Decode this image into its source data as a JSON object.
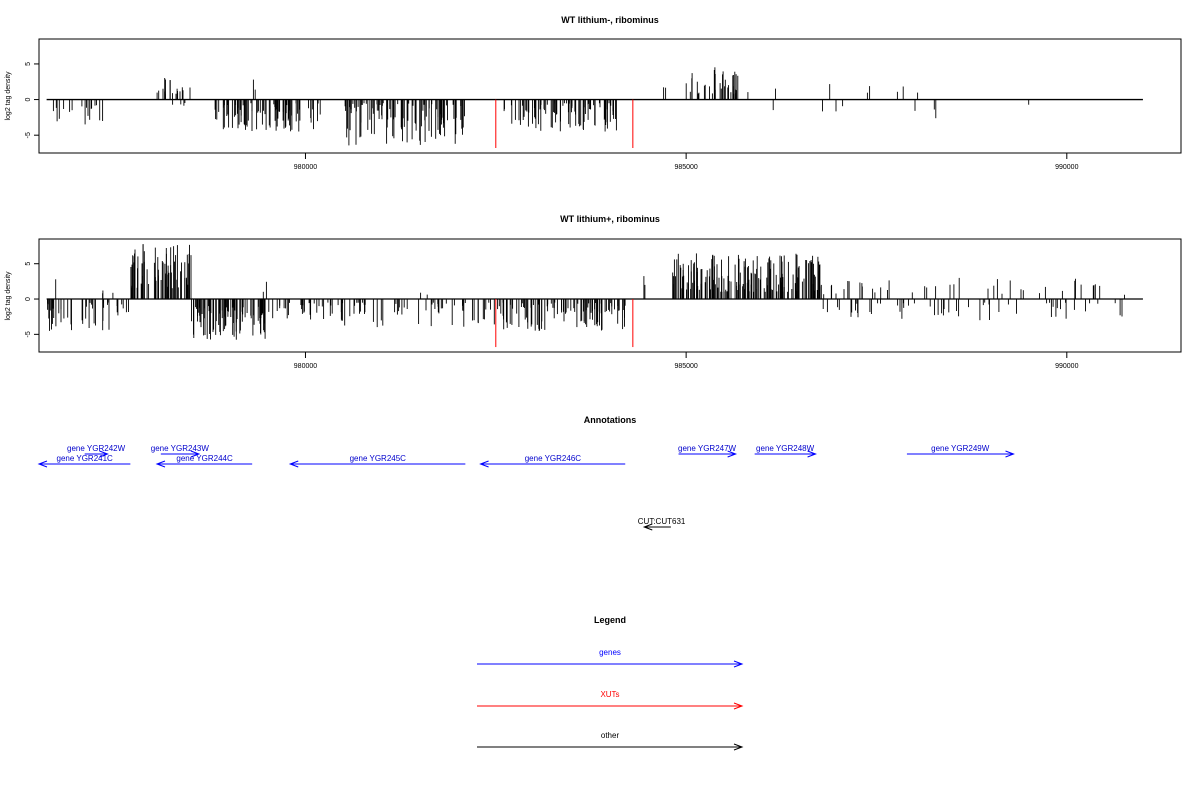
{
  "chart_data": [
    {
      "type": "bar",
      "title": "WT lithium-, ribominus",
      "ylabel": "log2 tag density",
      "xlim": [
        976500,
        991500
      ],
      "ylim": [
        -7.5,
        8.5
      ],
      "xticks": [
        980000,
        985000,
        990000
      ],
      "xtick_labels": [
        "980000",
        "985000",
        "990000"
      ],
      "yticks": [
        -5,
        0,
        5
      ],
      "ytick_labels": [
        "-5",
        "0",
        "5"
      ],
      "baseline": {
        "from": 976600,
        "to": 991000
      },
      "series": [
        {
          "color": "#000000",
          "intervals": [
            {
              "from": 976600,
              "to": 977400,
              "sign": -1,
              "min": 0.5,
              "max": 3.5,
              "count": 18
            },
            {
              "from": 977900,
              "to": 978500,
              "sign": 1,
              "min": 0.8,
              "max": 3.2,
              "count": 18
            },
            {
              "from": 978250,
              "to": 978500,
              "sign": -1,
              "min": 0.3,
              "max": 1.2,
              "count": 4
            },
            {
              "from": 978800,
              "to": 980200,
              "sign": -1,
              "min": 0.5,
              "max": 4.5,
              "count": 85
            },
            {
              "from": 979300,
              "to": 979350,
              "sign": 1,
              "min": 1.0,
              "max": 3.2,
              "count": 2
            },
            {
              "from": 980500,
              "to": 982100,
              "sign": -1,
              "min": 0.5,
              "max": 6.5,
              "count": 100
            },
            {
              "from": 982600,
              "to": 984100,
              "sign": -1,
              "min": 0.5,
              "max": 4.5,
              "count": 90
            },
            {
              "from": 984700,
              "to": 984750,
              "sign": 1,
              "min": 1.5,
              "max": 2.0,
              "count": 2
            },
            {
              "from": 985000,
              "to": 985700,
              "sign": 1,
              "min": 0.8,
              "max": 4.7,
              "count": 35
            },
            {
              "from": 985700,
              "to": 990000,
              "sign": 1,
              "min": 0.8,
              "max": 2.5,
              "count": 8
            },
            {
              "from": 985700,
              "to": 990000,
              "sign": -1,
              "min": 0.5,
              "max": 2.8,
              "count": 8
            }
          ]
        },
        {
          "color": "#ff0000",
          "lines": [
            {
              "x": 982500,
              "y": -6.8
            },
            {
              "x": 984300,
              "y": -6.8
            }
          ]
        }
      ]
    },
    {
      "type": "bar",
      "title": "WT lithium+, ribominus",
      "ylabel": "log2 tag density",
      "xlim": [
        976500,
        991500
      ],
      "ylim": [
        -7.5,
        8.5
      ],
      "xticks": [
        980000,
        985000,
        990000
      ],
      "xtick_labels": [
        "980000",
        "985000",
        "990000"
      ],
      "yticks": [
        -5,
        0,
        5
      ],
      "ytick_labels": [
        "-5",
        "0",
        "5"
      ],
      "baseline": {
        "from": 976600,
        "to": 991000
      },
      "series": [
        {
          "color": "#000000",
          "intervals": [
            {
              "from": 976600,
              "to": 977700,
              "sign": -1,
              "min": 0.5,
              "max": 5.0,
              "count": 45
            },
            {
              "from": 976700,
              "to": 976750,
              "sign": 1,
              "min": 2.5,
              "max": 3.0,
              "count": 1
            },
            {
              "from": 977300,
              "to": 977500,
              "sign": 1,
              "min": 0.8,
              "max": 1.5,
              "count": 3
            },
            {
              "from": 977700,
              "to": 978500,
              "sign": 1,
              "min": 1.5,
              "max": 8.0,
              "count": 70
            },
            {
              "from": 978500,
              "to": 979500,
              "sign": -1,
              "min": 1.0,
              "max": 6.0,
              "count": 90
            },
            {
              "from": 979500,
              "to": 980400,
              "sign": -1,
              "min": 0.5,
              "max": 3.0,
              "count": 30
            },
            {
              "from": 979400,
              "to": 979500,
              "sign": 1,
              "min": 1.0,
              "max": 2.6,
              "count": 2
            },
            {
              "from": 980400,
              "to": 982400,
              "sign": -1,
              "min": 0.5,
              "max": 4.0,
              "count": 60
            },
            {
              "from": 981500,
              "to": 981600,
              "sign": 1,
              "min": 0.5,
              "max": 1.0,
              "count": 2
            },
            {
              "from": 982400,
              "to": 984200,
              "sign": -1,
              "min": 0.5,
              "max": 5.0,
              "count": 110
            },
            {
              "from": 984400,
              "to": 984500,
              "sign": 1,
              "min": 2.0,
              "max": 3.5,
              "count": 2
            },
            {
              "from": 984800,
              "to": 986800,
              "sign": 1,
              "min": 1.0,
              "max": 6.5,
              "count": 170
            },
            {
              "from": 986800,
              "to": 990800,
              "sign": 1,
              "min": 0.5,
              "max": 3.0,
              "count": 40
            },
            {
              "from": 986800,
              "to": 990800,
              "sign": -1,
              "min": 0.5,
              "max": 3.0,
              "count": 55
            }
          ]
        },
        {
          "color": "#ff0000",
          "lines": [
            {
              "x": 982500,
              "y": -6.8
            },
            {
              "x": 984300,
              "y": -6.8
            }
          ]
        }
      ]
    }
  ],
  "annotations": {
    "title": "Annotations",
    "genes": [
      {
        "label": "gene YGR241C",
        "from": 977700,
        "to": 976400,
        "row": 0
      },
      {
        "label": "gene YGR242W",
        "from": 977100,
        "to": 977400,
        "row": 1
      },
      {
        "label": "gene YGR243W",
        "from": 978100,
        "to": 978600,
        "row": 1
      },
      {
        "label": "gene YGR244C",
        "from": 979300,
        "to": 978050,
        "row": 0
      },
      {
        "label": "gene YGR245C",
        "from": 982100,
        "to": 979800,
        "row": 0
      },
      {
        "label": "gene YGR246C",
        "from": 984200,
        "to": 982300,
        "row": 0
      },
      {
        "label": "gene YGR247W",
        "from": 984900,
        "to": 985650,
        "row": 1
      },
      {
        "label": "gene YGR248W",
        "from": 985900,
        "to": 986700,
        "row": 1
      },
      {
        "label": "gene YGR249W",
        "from": 987900,
        "to": 989300,
        "row": 1
      }
    ],
    "other": [
      {
        "label": "CUT:CUT631",
        "from": 984800,
        "to": 984450
      }
    ]
  },
  "legend": {
    "title": "Legend",
    "items": [
      {
        "label": "genes",
        "color": "#0000ff"
      },
      {
        "label": "XUTs",
        "color": "#ff0000"
      },
      {
        "label": "other",
        "color": "#000000"
      }
    ]
  }
}
